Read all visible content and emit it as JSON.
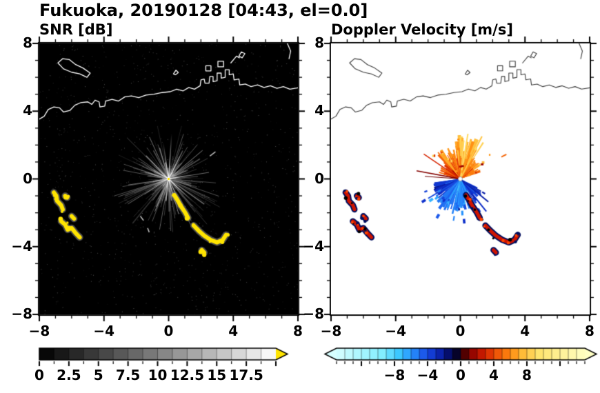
{
  "title": "Fukuoka, 20190128 [04:43, el=0.0]",
  "panels": [
    {
      "subtitle": "SNR [dB]"
    },
    {
      "subtitle": "Doppler Velocity [m/s]"
    }
  ],
  "chart_data": [
    {
      "type": "heatmap",
      "title": "SNR [dB]",
      "background": "#000000",
      "xlim": [
        -8,
        8
      ],
      "ylim": [
        -8,
        8
      ],
      "grid": false,
      "xaxis": {
        "tick_values": [
          -8,
          -4,
          0,
          4,
          8
        ],
        "tick_labels": [
          "−8",
          "−4",
          "0",
          "4",
          "8"
        ]
      },
      "yaxis": {
        "tick_values": [
          8,
          4,
          0,
          -4,
          -8
        ],
        "tick_labels": [
          "8",
          "4",
          "0",
          "−4",
          "−8"
        ]
      },
      "colorbar": {
        "range": [
          0,
          20
        ],
        "tick_values": [
          0,
          2.5,
          5,
          7.5,
          10,
          12.5,
          15,
          17.5
        ],
        "tick_labels": [
          "0",
          "2.5",
          "5",
          "7.5",
          "10",
          "12.5",
          "15",
          "17.5"
        ],
        "colormap": "grayscale-black-to-white",
        "over_color": "#ffe400"
      },
      "radar_center": [
        0,
        0
      ],
      "clutter_fan": {
        "streaks": 310,
        "max_len": 3.3,
        "bright_rays": [
          [
            86,
            2.7
          ],
          [
            99,
            2.2
          ],
          [
            140,
            1.6
          ],
          [
            152,
            1.9
          ],
          [
            10,
            1.5
          ],
          [
            62,
            1.9
          ],
          [
            255,
            1.3
          ],
          [
            285,
            1.6
          ],
          [
            318,
            2.1
          ],
          [
            200,
            1.1
          ]
        ],
        "detached_dashes": [
          [
            -1.75,
            -2.2,
            -1.55,
            -2.45
          ],
          [
            -1.3,
            -2.9,
            -1.2,
            -3.15
          ],
          [
            2.55,
            1.35,
            2.9,
            1.6
          ]
        ]
      },
      "high_snr_echoes": {
        "color": "#ffe400",
        "west_cluster": [
          [
            [
              -7.1,
              -0.8
            ],
            [
              -6.95,
              -1.0
            ],
            [
              -6.9,
              -1.3
            ],
            [
              -6.65,
              -1.55
            ],
            [
              -6.55,
              -1.8
            ]
          ],
          [
            [
              -6.4,
              -1.0
            ],
            [
              -6.28,
              -1.1
            ]
          ],
          [
            [
              -6.65,
              -2.5
            ],
            [
              -6.4,
              -2.7
            ],
            [
              -6.25,
              -3.0
            ],
            [
              -6.0,
              -2.9
            ],
            [
              -5.75,
              -3.2
            ],
            [
              -5.5,
              -3.45
            ]
          ],
          [
            [
              -6.0,
              -2.2
            ],
            [
              -5.85,
              -2.35
            ]
          ]
        ],
        "central_arc": [
          [
            [
              0.35,
              -0.95
            ],
            [
              0.55,
              -1.25
            ],
            [
              0.75,
              -1.6
            ],
            [
              1.0,
              -1.95
            ],
            [
              1.2,
              -2.3
            ]
          ],
          [
            [
              1.55,
              -2.75
            ],
            [
              1.85,
              -3.05
            ],
            [
              2.2,
              -3.35
            ],
            [
              2.6,
              -3.6
            ],
            [
              3.0,
              -3.75
            ],
            [
              3.35,
              -3.6
            ],
            [
              3.55,
              -3.3
            ]
          ],
          [
            [
              2.05,
              -4.2
            ],
            [
              2.2,
              -4.35
            ]
          ]
        ]
      }
    },
    {
      "type": "heatmap",
      "title": "Doppler Velocity [m/s]",
      "background": "#ffffff",
      "xlim": [
        -8,
        8
      ],
      "ylim": [
        -8,
        8
      ],
      "grid": false,
      "xaxis": {
        "tick_values": [
          -8,
          -4,
          0,
          4,
          8
        ],
        "tick_labels": [
          "−8",
          "−4",
          "0",
          "4",
          "8"
        ]
      },
      "yaxis": {
        "tick_values": [
          8,
          4,
          0,
          -4,
          -8
        ],
        "tick_labels": [
          "8",
          "4",
          "0",
          "−4",
          "−8"
        ]
      },
      "colorbar": {
        "range": [
          -15,
          15
        ],
        "tick_values": [
          -8,
          -4,
          0,
          4,
          8
        ],
        "tick_labels": [
          "−8",
          "−4",
          "0",
          "4",
          "8"
        ],
        "stops": [
          [
            -15,
            215,
            255,
            255
          ],
          [
            -9.5,
            130,
            238,
            255
          ],
          [
            -7.5,
            60,
            200,
            255
          ],
          [
            -6,
            40,
            150,
            255
          ],
          [
            -4.5,
            28,
            90,
            235
          ],
          [
            -3,
            14,
            45,
            200
          ],
          [
            -1.8,
            6,
            18,
            130
          ],
          [
            -0.8,
            2,
            4,
            60
          ],
          [
            -0.1,
            12,
            2,
            18
          ],
          [
            0.1,
            45,
            0,
            0
          ],
          [
            0.8,
            110,
            0,
            0
          ],
          [
            1.8,
            168,
            8,
            0
          ],
          [
            3,
            214,
            36,
            0
          ],
          [
            4.5,
            240,
            88,
            8
          ],
          [
            6,
            255,
            138,
            16
          ],
          [
            7.5,
            255,
            188,
            56
          ],
          [
            9.5,
            255,
            228,
            110
          ],
          [
            15,
            255,
            255,
            195
          ]
        ]
      },
      "radar_center": [
        0,
        0
      ],
      "fan": {
        "sectors": [
          {
            "a0": 20,
            "a1": 58,
            "rmax": 1.5,
            "v0": 2,
            "v1": 7
          },
          {
            "a0": 55,
            "a1": 100,
            "rmax": 2.6,
            "v0": 3,
            "v1": 9
          },
          {
            "a0": 98,
            "a1": 135,
            "rmax": 2.1,
            "v0": 2,
            "v1": 7
          },
          {
            "a0": 133,
            "a1": 168,
            "rmax": 1.4,
            "v0": 1,
            "v1": 5
          },
          {
            "a0": 188,
            "a1": 226,
            "rmax": 1.8,
            "v0": -6,
            "v1": -2
          },
          {
            "a0": 224,
            "a1": 268,
            "rmax": 2.2,
            "v0": -9,
            "v1": -3
          },
          {
            "a0": 266,
            "a1": 300,
            "rmax": 1.9,
            "v0": -9,
            "v1": -4
          },
          {
            "a0": 298,
            "a1": 334,
            "rmax": 1.6,
            "v0": -6,
            "v1": -2
          }
        ],
        "streaks": [
          {
            "a": 170,
            "len": 2.75,
            "v": 1.2,
            "w": 1.6
          },
          {
            "a": 176,
            "len": 2.2,
            "v": 0.8,
            "w": 1.2
          },
          {
            "a": 147,
            "len": 2.7,
            "v": 3,
            "w": 1.5
          },
          {
            "a": 62,
            "len": 2.85,
            "v": 8,
            "w": 2
          },
          {
            "a": 80,
            "len": 2.7,
            "v": 9,
            "w": 2
          },
          {
            "a": 310,
            "len": 2.5,
            "v": -3,
            "w": 2
          },
          {
            "a": 322,
            "len": 2.2,
            "v": -2.5,
            "w": 2
          },
          {
            "a": 296,
            "len": 2.6,
            "v": -6,
            "w": 2
          },
          {
            "a": 210,
            "len": 2.3,
            "v": -4,
            "w": 2
          },
          {
            "a": 27,
            "len": 3.2,
            "v": 5,
            "w": 2,
            "r0": 2.85
          }
        ]
      },
      "echo_colors": {
        "edge": "#001060",
        "core": "#cf1400",
        "bright": "#ff4400"
      }
    }
  ],
  "coastline": {
    "mainland": [
      [
        -8.15,
        3.45
      ],
      [
        -7.7,
        3.7
      ],
      [
        -7.45,
        4.1
      ],
      [
        -7.1,
        4.25
      ],
      [
        -6.75,
        4.2
      ],
      [
        -6.5,
        3.95
      ],
      [
        -6.1,
        4.05
      ],
      [
        -5.8,
        4.35
      ],
      [
        -5.45,
        4.5
      ],
      [
        -5.0,
        4.55
      ],
      [
        -4.75,
        4.4
      ],
      [
        -4.55,
        4.65
      ],
      [
        -4.3,
        4.55
      ],
      [
        -4.25,
        4.25
      ],
      [
        -3.95,
        4.3
      ],
      [
        -3.9,
        4.6
      ],
      [
        -3.5,
        4.7
      ],
      [
        -3.1,
        4.6
      ],
      [
        -2.7,
        4.85
      ],
      [
        -2.3,
        4.9
      ],
      [
        -1.85,
        4.8
      ],
      [
        -1.4,
        4.95
      ],
      [
        -0.9,
        5.0
      ],
      [
        -0.4,
        5.1
      ],
      [
        0.1,
        5.15
      ],
      [
        0.5,
        5.3
      ],
      [
        0.9,
        5.2
      ],
      [
        1.25,
        5.4
      ],
      [
        1.6,
        5.3
      ],
      [
        1.95,
        5.5
      ],
      [
        2.0,
        5.85
      ],
      [
        2.2,
        5.9
      ],
      [
        2.25,
        5.65
      ],
      [
        2.5,
        5.65
      ],
      [
        2.55,
        6.05
      ],
      [
        2.75,
        6.05
      ],
      [
        2.75,
        5.75
      ],
      [
        3.0,
        5.8
      ],
      [
        3.0,
        6.25
      ],
      [
        3.25,
        6.25
      ],
      [
        3.25,
        5.95
      ],
      [
        3.5,
        6.0
      ],
      [
        3.5,
        6.45
      ],
      [
        3.75,
        6.45
      ],
      [
        3.75,
        6.15
      ],
      [
        4.0,
        6.2
      ],
      [
        4.05,
        5.85
      ],
      [
        4.35,
        5.9
      ],
      [
        4.4,
        5.55
      ],
      [
        4.75,
        5.6
      ],
      [
        5.1,
        5.45
      ],
      [
        5.5,
        5.55
      ],
      [
        5.9,
        5.4
      ],
      [
        6.3,
        5.5
      ],
      [
        6.7,
        5.35
      ],
      [
        7.1,
        5.45
      ],
      [
        7.5,
        5.3
      ],
      [
        8.15,
        5.4
      ]
    ],
    "island_west": [
      [
        -6.85,
        6.85
      ],
      [
        -6.55,
        7.1
      ],
      [
        -6.15,
        7.05
      ],
      [
        -5.75,
        6.75
      ],
      [
        -5.3,
        6.55
      ],
      [
        -4.85,
        6.25
      ],
      [
        -5.05,
        6.0
      ],
      [
        -5.5,
        6.2
      ],
      [
        -6.0,
        6.3
      ],
      [
        -6.5,
        6.5
      ],
      [
        -6.85,
        6.85
      ]
    ],
    "islet_north": [
      [
        4.35,
        7.25
      ],
      [
        4.5,
        7.5
      ],
      [
        4.72,
        7.4
      ],
      [
        4.55,
        7.15
      ],
      [
        4.35,
        7.25
      ]
    ],
    "islet_center": [
      [
        0.3,
        6.2
      ],
      [
        0.45,
        6.42
      ],
      [
        0.6,
        6.28
      ],
      [
        0.42,
        6.15
      ],
      [
        0.3,
        6.2
      ]
    ],
    "pier_block_a": [
      [
        2.3,
        6.38
      ],
      [
        2.3,
        6.68
      ],
      [
        2.62,
        6.68
      ],
      [
        2.62,
        6.38
      ],
      [
        2.3,
        6.38
      ]
    ],
    "pier_block_b": [
      [
        3.05,
        6.62
      ],
      [
        3.05,
        6.95
      ],
      [
        3.4,
        6.95
      ],
      [
        3.4,
        6.62
      ],
      [
        3.05,
        6.62
      ]
    ],
    "breakwater": [
      [
        3.85,
        6.85
      ],
      [
        4.2,
        7.25
      ],
      [
        4.38,
        7.15
      ]
    ],
    "coast_northeast": [
      [
        7.3,
        8.1
      ],
      [
        7.55,
        7.55
      ],
      [
        7.45,
        7.1
      ]
    ]
  }
}
